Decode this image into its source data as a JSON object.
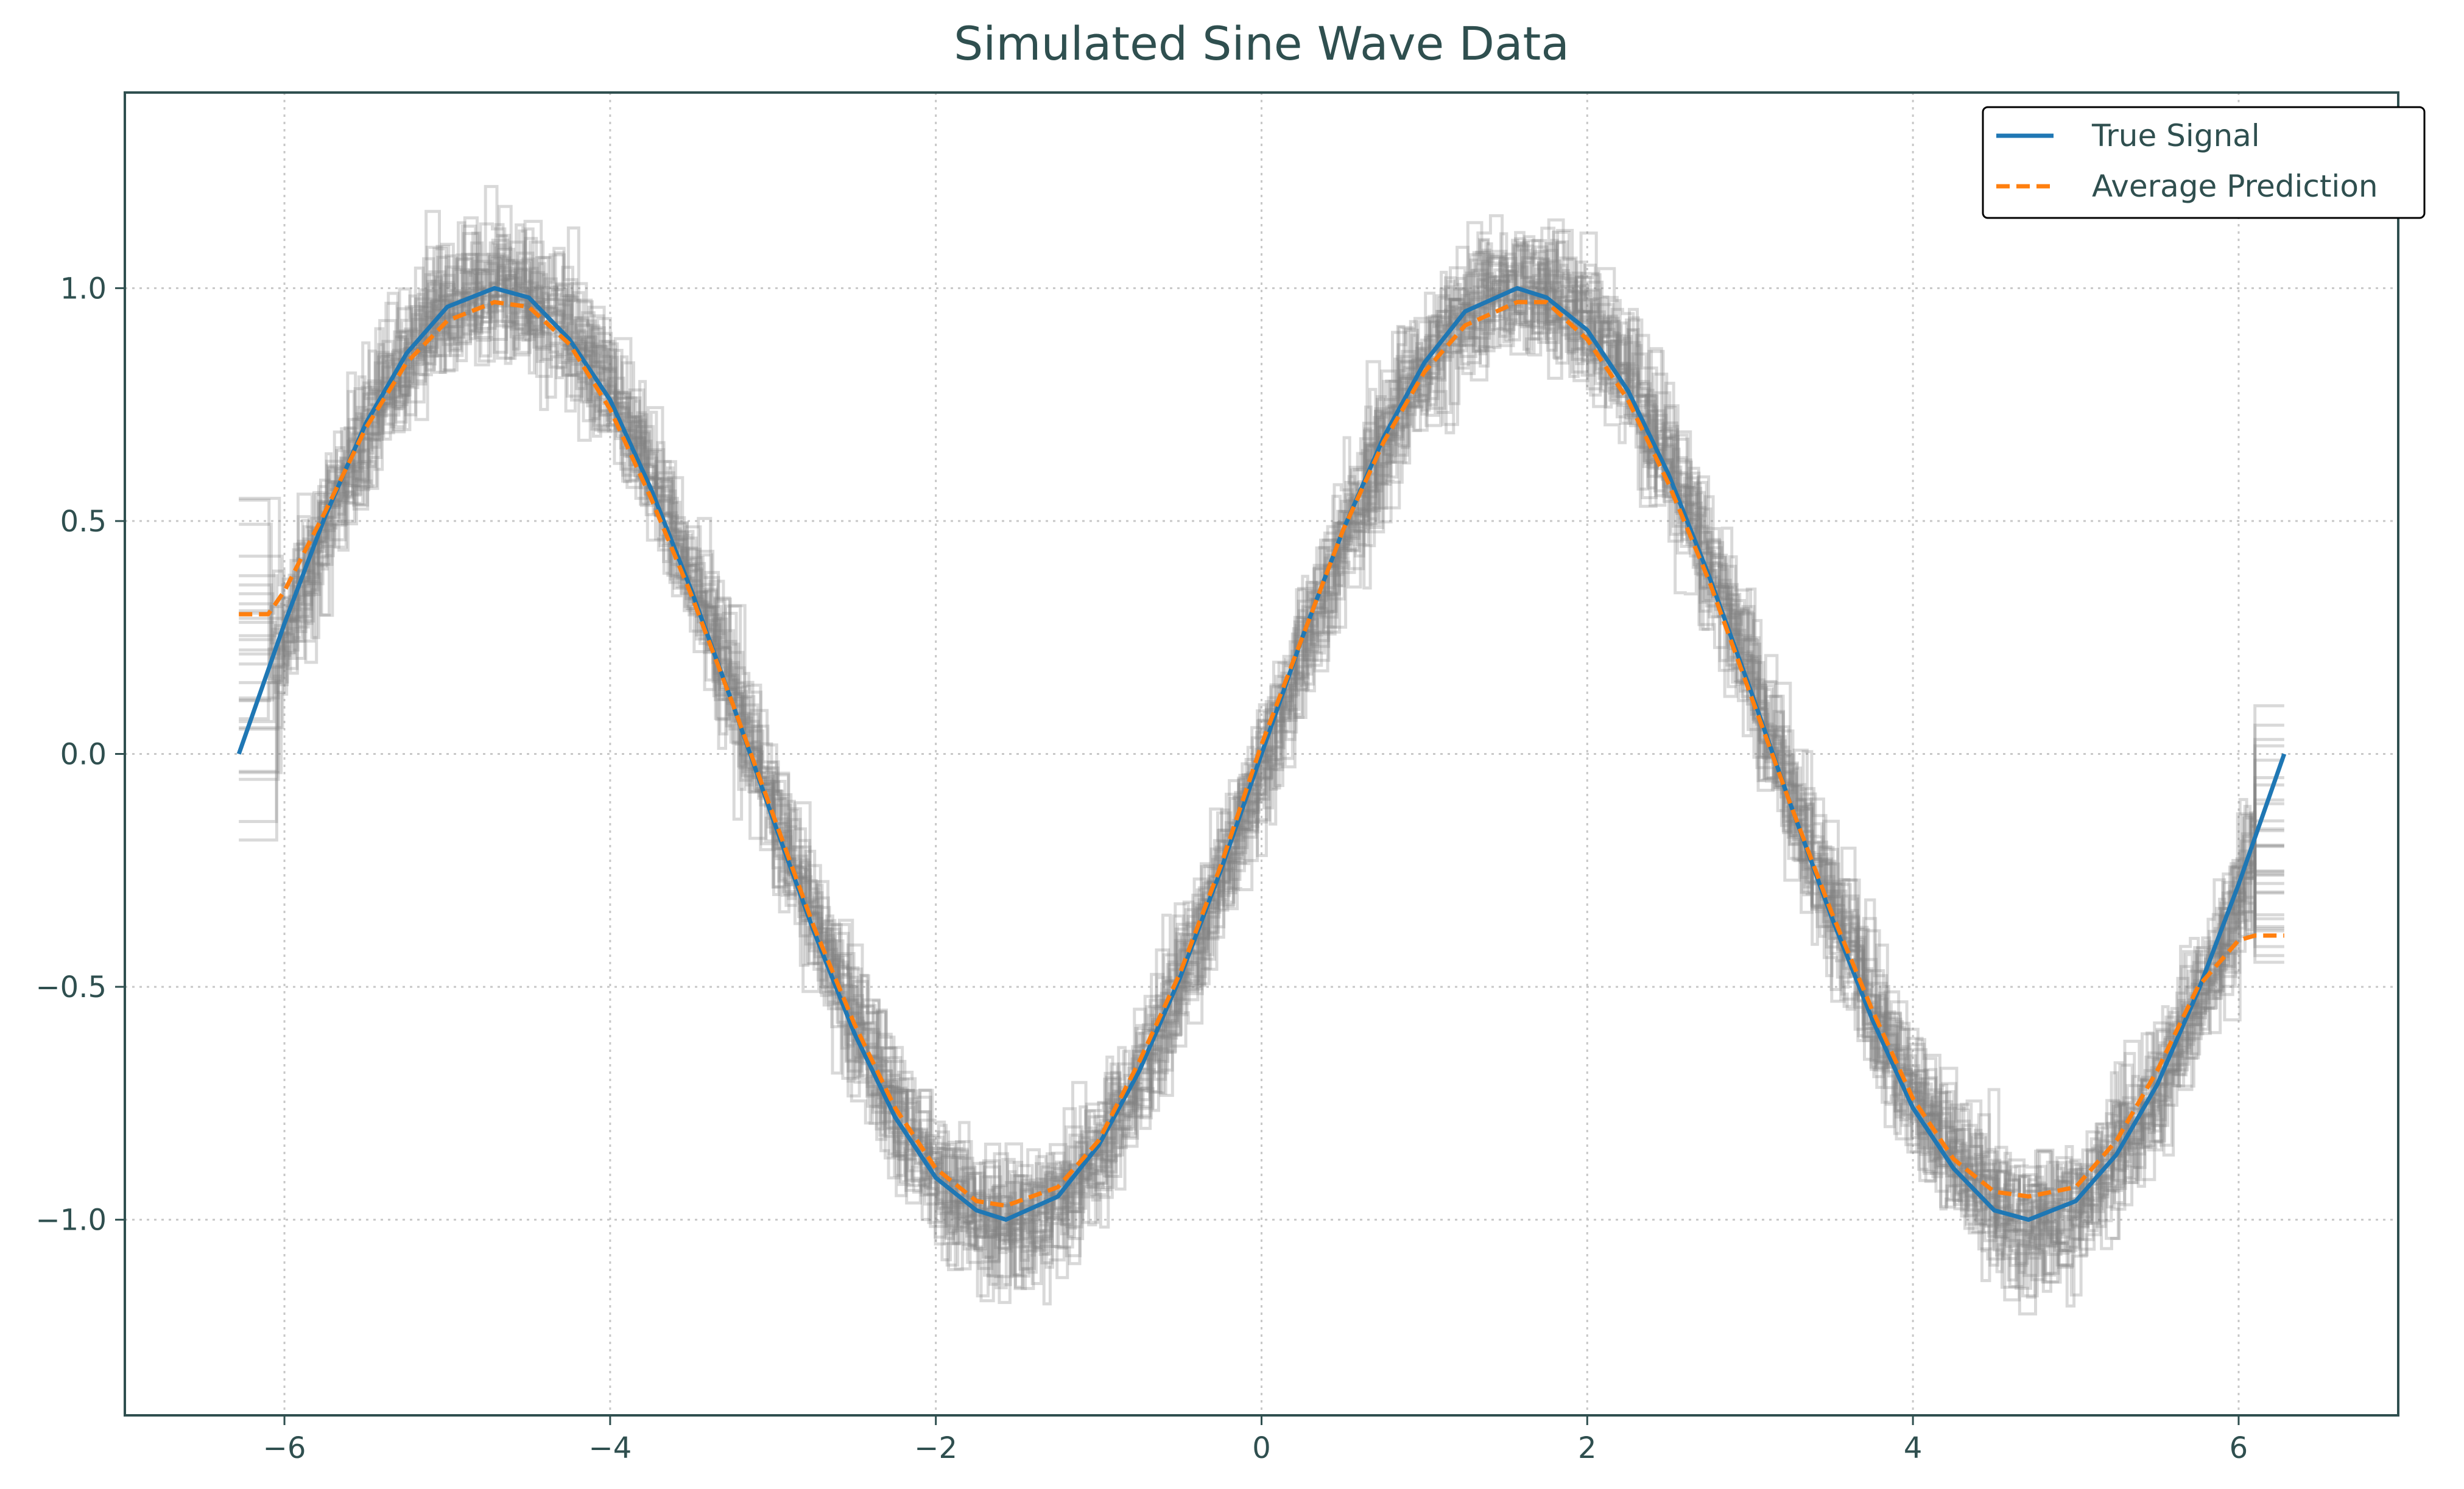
{
  "chart_data": {
    "type": "line",
    "title": "Simulated Sine Wave Data",
    "xlabel": "",
    "ylabel": "",
    "xlim": [
      -6.98,
      6.98
    ],
    "ylim": [
      -1.42,
      1.42
    ],
    "grid": true,
    "legend_position": "top-right",
    "x_ticks": [
      -6,
      -4,
      -2,
      0,
      2,
      4,
      6
    ],
    "x_tick_labels": [
      "−6",
      "−4",
      "−2",
      "0",
      "2",
      "4",
      "6"
    ],
    "y_ticks": [
      1.0,
      0.5,
      0.0,
      -0.5,
      -1.0
    ],
    "y_tick_labels": [
      "1.0",
      "0.5",
      "0.0",
      "−0.5",
      "−1.0"
    ],
    "colors": {
      "true_signal": "#1f77b4",
      "average_prediction": "#ff7f0e",
      "individual_predictions": "#808080",
      "text": "#2f4f4f"
    },
    "series": [
      {
        "name": "True Signal",
        "style": "solid",
        "x": [
          -6.28,
          -6.0,
          -5.75,
          -5.5,
          -5.25,
          -5.0,
          -4.71,
          -4.5,
          -4.25,
          -4.0,
          -3.75,
          -3.5,
          -3.25,
          -3.0,
          -2.75,
          -2.5,
          -2.25,
          -2.0,
          -1.75,
          -1.57,
          -1.25,
          -1.0,
          -0.75,
          -0.5,
          -0.25,
          0.0,
          0.25,
          0.5,
          0.75,
          1.0,
          1.25,
          1.57,
          1.75,
          2.0,
          2.25,
          2.5,
          2.75,
          3.0,
          3.25,
          3.5,
          3.75,
          4.0,
          4.25,
          4.5,
          4.71,
          5.0,
          5.25,
          5.5,
          5.75,
          6.0,
          6.28
        ],
        "y": [
          0.0,
          0.28,
          0.51,
          0.71,
          0.86,
          0.96,
          1.0,
          0.98,
          0.89,
          0.76,
          0.57,
          0.35,
          0.11,
          -0.14,
          -0.38,
          -0.6,
          -0.78,
          -0.91,
          -0.98,
          -1.0,
          -0.95,
          -0.84,
          -0.68,
          -0.48,
          -0.25,
          0.0,
          0.25,
          0.48,
          0.68,
          0.84,
          0.95,
          1.0,
          0.98,
          0.91,
          0.78,
          0.6,
          0.38,
          0.14,
          -0.11,
          -0.35,
          -0.57,
          -0.76,
          -0.89,
          -0.98,
          -1.0,
          -0.96,
          -0.86,
          -0.71,
          -0.51,
          -0.28,
          0.0
        ]
      },
      {
        "name": "Average Prediction",
        "style": "dashed",
        "x": [
          -6.28,
          -6.1,
          -6.0,
          -5.75,
          -5.5,
          -5.25,
          -5.0,
          -4.71,
          -4.5,
          -4.25,
          -4.0,
          -3.75,
          -3.5,
          -3.25,
          -3.0,
          -2.75,
          -2.5,
          -2.25,
          -2.0,
          -1.75,
          -1.57,
          -1.25,
          -1.0,
          -0.75,
          -0.5,
          -0.25,
          0.0,
          0.25,
          0.5,
          0.75,
          1.0,
          1.25,
          1.57,
          1.75,
          2.0,
          2.25,
          2.5,
          2.75,
          3.0,
          3.25,
          3.5,
          3.75,
          4.0,
          4.25,
          4.5,
          4.71,
          5.0,
          5.25,
          5.5,
          5.75,
          6.0,
          6.1,
          6.28
        ],
        "y": [
          0.3,
          0.3,
          0.35,
          0.52,
          0.7,
          0.84,
          0.93,
          0.97,
          0.96,
          0.88,
          0.74,
          0.55,
          0.34,
          0.11,
          -0.13,
          -0.37,
          -0.58,
          -0.76,
          -0.89,
          -0.96,
          -0.97,
          -0.93,
          -0.83,
          -0.66,
          -0.47,
          -0.24,
          0.02,
          0.25,
          0.48,
          0.67,
          0.82,
          0.92,
          0.97,
          0.97,
          0.89,
          0.76,
          0.58,
          0.37,
          0.13,
          -0.11,
          -0.34,
          -0.55,
          -0.74,
          -0.87,
          -0.94,
          -0.95,
          -0.93,
          -0.83,
          -0.68,
          -0.5,
          -0.4,
          -0.39,
          -0.39
        ]
      }
    ]
  }
}
